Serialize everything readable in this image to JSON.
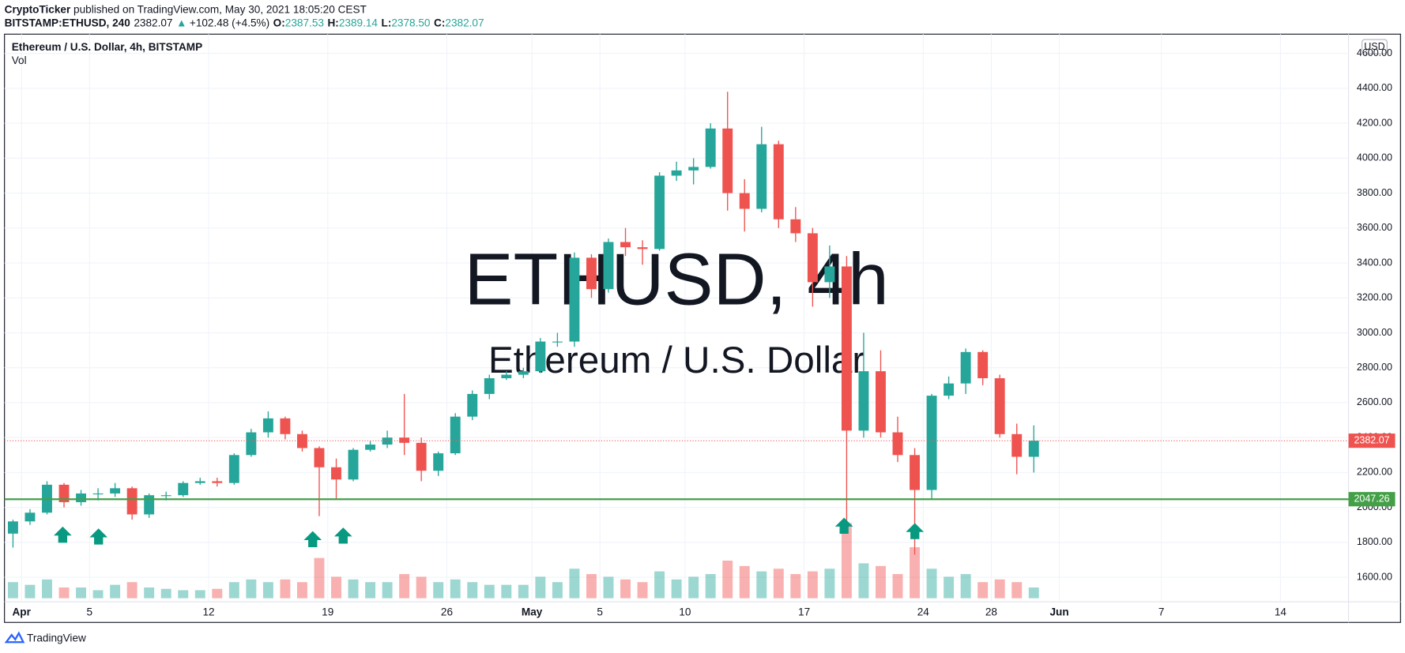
{
  "header": {
    "author": "CryptoTicker",
    "published": " published on TradingView.com, May 30, 2021 18:05:20 CEST",
    "symbol": "BITSTAMP:ETHUSD, 240",
    "last": "2382.07",
    "arrow": "▲",
    "change": "+102.48 (+4.5%)",
    "o_label": "O:",
    "o": "2387.53",
    "h_label": "H:",
    "h": "2389.14",
    "l_label": "L:",
    "l": "2378.50",
    "c_label": "C:",
    "c": "2382.07"
  },
  "footer": {
    "brand": "TradingView"
  },
  "chart_data": {
    "type": "candlestick",
    "legend": "Ethereum / U.S. Dollar, 4h, BITSTAMP",
    "volume_label": "Vol",
    "watermark": "ETHUSD, 4h",
    "watermark_sub": "Ethereum / U.S. Dollar",
    "currency": "USD",
    "up_color": "#26a69a",
    "down_color": "#ef5350",
    "x": [
      "Mar 31",
      "Apr 1",
      "Apr 2",
      "Apr 3",
      "Apr 4",
      "Apr 5",
      "Apr 6",
      "Apr 7",
      "Apr 8",
      "Apr 9",
      "Apr 10",
      "Apr 11",
      "Apr 12",
      "Apr 13",
      "Apr 14",
      "Apr 15",
      "Apr 16",
      "Apr 17",
      "Apr 18",
      "Apr 19",
      "Apr 20",
      "Apr 21",
      "Apr 22",
      "Apr 23",
      "Apr 24",
      "Apr 25",
      "Apr 26",
      "Apr 27",
      "Apr 28",
      "Apr 29",
      "Apr 30",
      "May 1",
      "May 2",
      "May 3",
      "May 4",
      "May 5",
      "May 6",
      "May 7",
      "May 8",
      "May 9",
      "May 10",
      "May 11",
      "May 12",
      "May 13",
      "May 14",
      "May 15",
      "May 16",
      "May 17",
      "May 18",
      "May 19",
      "May 20",
      "May 21",
      "May 22",
      "May 23",
      "May 24",
      "May 25",
      "May 26",
      "May 27",
      "May 28",
      "May 29",
      "May 30"
    ],
    "open": [
      1850,
      1920,
      1970,
      2130,
      2030,
      2080,
      2080,
      2110,
      1960,
      2070,
      2070,
      2140,
      2150,
      2140,
      2300,
      2430,
      2510,
      2420,
      2340,
      2230,
      2160,
      2330,
      2360,
      2400,
      2370,
      2210,
      2310,
      2520,
      2650,
      2740,
      2760,
      2780,
      2950,
      2950,
      3430,
      3250,
      3520,
      3490,
      3480,
      3900,
      3930,
      3950,
      4170,
      3800,
      3710,
      4080,
      3650,
      3570,
      3290,
      3380,
      2440,
      2780,
      2430,
      2300,
      2100,
      2640,
      2710,
      2890,
      2740,
      2420,
      2290
    ],
    "high": [
      1930,
      1990,
      2150,
      2140,
      2100,
      2110,
      2140,
      2120,
      2080,
      2090,
      2150,
      2170,
      2170,
      2310,
      2450,
      2550,
      2520,
      2440,
      2350,
      2280,
      2340,
      2380,
      2440,
      2650,
      2400,
      2320,
      2540,
      2670,
      2760,
      2780,
      2800,
      2970,
      3000,
      3460,
      3450,
      3540,
      3600,
      3530,
      3920,
      3980,
      4000,
      4200,
      4380,
      3880,
      4180,
      4100,
      3720,
      3600,
      3500,
      3440,
      3000,
      2900,
      2520,
      2340,
      2650,
      2750,
      2910,
      2900,
      2760,
      2480,
      2470
    ],
    "low": [
      1770,
      1900,
      1960,
      2000,
      2010,
      2040,
      2060,
      1930,
      1940,
      2040,
      2060,
      2130,
      2120,
      2130,
      2290,
      2400,
      2390,
      2320,
      1950,
      2050,
      2150,
      2320,
      2340,
      2300,
      2150,
      2180,
      2300,
      2500,
      2620,
      2730,
      2740,
      2770,
      2920,
      2920,
      3200,
      3230,
      3440,
      3390,
      3470,
      3870,
      3850,
      3940,
      3700,
      3580,
      3690,
      3600,
      3520,
      3150,
      3200,
      1900,
      2400,
      2400,
      2260,
      1730,
      2050,
      2620,
      2650,
      2700,
      2400,
      2190,
      2200
    ],
    "close": [
      1920,
      1970,
      2130,
      2030,
      2080,
      2080,
      2110,
      1960,
      2070,
      2070,
      2140,
      2150,
      2140,
      2300,
      2430,
      2510,
      2420,
      2340,
      2230,
      2160,
      2330,
      2360,
      2400,
      2370,
      2210,
      2310,
      2520,
      2650,
      2740,
      2760,
      2780,
      2950,
      2950,
      3430,
      3250,
      3520,
      3490,
      3480,
      3900,
      3930,
      3950,
      4170,
      3800,
      3710,
      4080,
      3650,
      3570,
      3290,
      3380,
      2440,
      2780,
      2430,
      2300,
      2100,
      2640,
      2710,
      2890,
      2740,
      2420,
      2290,
      2382.07
    ],
    "volume": [
      60,
      50,
      70,
      40,
      40,
      30,
      50,
      60,
      40,
      35,
      30,
      30,
      35,
      60,
      70,
      60,
      70,
      60,
      150,
      80,
      70,
      60,
      60,
      90,
      80,
      60,
      70,
      60,
      50,
      50,
      50,
      80,
      60,
      110,
      90,
      80,
      70,
      60,
      100,
      70,
      80,
      90,
      140,
      120,
      100,
      110,
      90,
      100,
      110,
      280,
      130,
      120,
      90,
      190,
      110,
      80,
      90,
      60,
      70,
      60,
      40
    ],
    "volume_lim": [
      0,
      300
    ],
    "xlim": [
      "Mar 31",
      "Jun 18"
    ],
    "xticks": [
      {
        "value": "Apr 1",
        "label": "Apr"
      },
      {
        "value": "Apr 5",
        "label": "5"
      },
      {
        "value": "Apr 12",
        "label": "12"
      },
      {
        "value": "Apr 19",
        "label": "19"
      },
      {
        "value": "Apr 26",
        "label": "26"
      },
      {
        "value": "May 1",
        "label": "May"
      },
      {
        "value": "May 5",
        "label": "5"
      },
      {
        "value": "May 10",
        "label": "10"
      },
      {
        "value": "May 17",
        "label": "17"
      },
      {
        "value": "May 24",
        "label": "24"
      },
      {
        "value": "May 28",
        "label": "28"
      },
      {
        "value": "Jun 1",
        "label": "Jun"
      },
      {
        "value": "Jun 7",
        "label": "7"
      },
      {
        "value": "Jun 14",
        "label": "14"
      }
    ],
    "ylim": [
      1480,
      4700
    ],
    "yticks": [
      {
        "value": 1600,
        "label": "1600.00"
      },
      {
        "value": 1800,
        "label": "1800.00"
      },
      {
        "value": 2000,
        "label": "2000.00"
      },
      {
        "value": 2200,
        "label": "2200.00"
      },
      {
        "value": 2400,
        "label": "2400.00"
      },
      {
        "value": 2600,
        "label": "2600.00"
      },
      {
        "value": 2800,
        "label": "2800.00"
      },
      {
        "value": 3000,
        "label": "3000.00"
      },
      {
        "value": 3200,
        "label": "3200.00"
      },
      {
        "value": 3400,
        "label": "3400.00"
      },
      {
        "value": 3600,
        "label": "3600.00"
      },
      {
        "value": 3800,
        "label": "3800.00"
      },
      {
        "value": 4000,
        "label": "4000.00"
      },
      {
        "value": 4200,
        "label": "4200.00"
      },
      {
        "value": 4400,
        "label": "4400.00"
      },
      {
        "value": 4600,
        "label": "4600.00"
      }
    ],
    "grid": true,
    "last_price": 2382.07,
    "hline": 2047.26,
    "hline_color": "#43a047"
  }
}
